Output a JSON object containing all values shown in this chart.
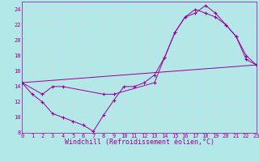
{
  "xlabel": "Windchill (Refroidissement éolien,°C)",
  "xlim": [
    0,
    23
  ],
  "ylim": [
    8,
    25
  ],
  "xticks": [
    0,
    1,
    2,
    3,
    4,
    5,
    6,
    7,
    8,
    9,
    10,
    11,
    12,
    13,
    14,
    15,
    16,
    17,
    18,
    19,
    20,
    21,
    22,
    23
  ],
  "yticks": [
    8,
    10,
    12,
    14,
    16,
    18,
    20,
    22,
    24
  ],
  "bg_color": "#b3e8e8",
  "grid_color": "#c8dede",
  "line_color": "#990099",
  "curve1_x": [
    0,
    1,
    2,
    3,
    4,
    5,
    6,
    7,
    8,
    9,
    10,
    11,
    12,
    13,
    14,
    15,
    16,
    17,
    18,
    19,
    20,
    21,
    22,
    23
  ],
  "curve1_y": [
    14.5,
    13.0,
    12.0,
    10.5,
    10.0,
    9.5,
    9.0,
    8.2,
    10.3,
    12.2,
    14.0,
    14.0,
    14.5,
    15.5,
    17.8,
    21.0,
    23.0,
    23.5,
    24.5,
    23.5,
    22.0,
    20.5,
    18.0,
    16.8
  ],
  "curve2_x": [
    0,
    2,
    3,
    4,
    8,
    9,
    13,
    14,
    15,
    16,
    17,
    18,
    19,
    20,
    21,
    22,
    23
  ],
  "curve2_y": [
    14.5,
    13.0,
    14.0,
    14.0,
    13.0,
    13.0,
    14.5,
    17.8,
    21.0,
    23.0,
    24.0,
    23.5,
    23.0,
    22.0,
    20.5,
    17.5,
    16.8
  ],
  "curve3_x": [
    0,
    23
  ],
  "curve3_y": [
    14.5,
    16.8
  ],
  "lw": 0.7,
  "ms": 2.5,
  "mew": 0.8,
  "tick_fs": 5.0,
  "xlabel_fs": 6.0
}
